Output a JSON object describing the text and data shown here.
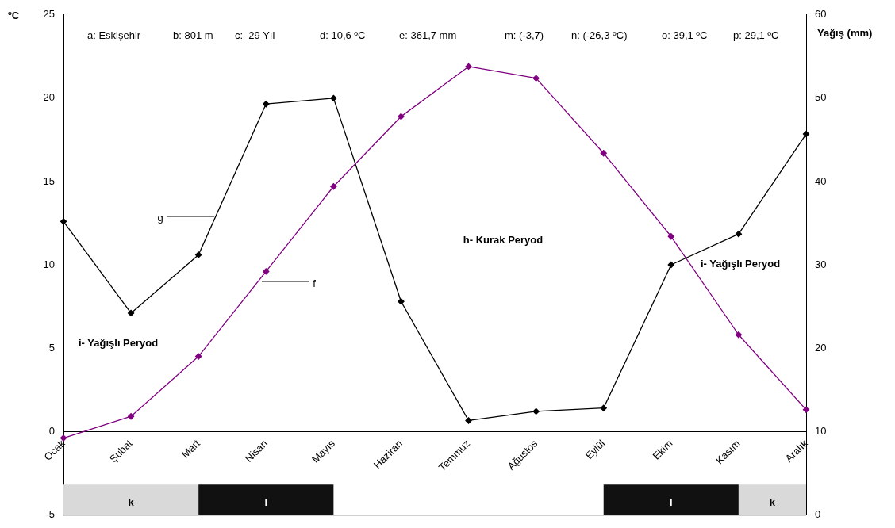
{
  "chart_data": {
    "type": "line",
    "categories": [
      "Ocak",
      "Şubat",
      "Mart",
      "Nisan",
      "Mayıs",
      "Haziran",
      "Temmuz",
      "Ağustos",
      "Eylül",
      "Ekim",
      "Kasım",
      "Aralık"
    ],
    "series": [
      {
        "color": "#800080",
        "values": [
          -0.4,
          0.9,
          4.5,
          9.6,
          14.7,
          18.9,
          21.9,
          21.2,
          16.7,
          11.7,
          5.8,
          1.3
        ]
      },
      {
        "color": "#000000",
        "axis": "y2",
        "values": [
          35.2,
          24.2,
          31.2,
          49.3,
          50.0,
          25.6,
          11.3,
          12.4,
          12.8,
          30.0,
          33.7,
          45.7
        ]
      }
    ],
    "ylabel": "ºC",
    "y2label": "Yağış (mm)",
    "ylim": [
      -5,
      25
    ],
    "yticks": [
      -5,
      0,
      5,
      10,
      15,
      20,
      25
    ],
    "y2lim": [
      0,
      60
    ],
    "y2ticks": [
      0,
      10,
      20,
      30,
      40,
      50,
      60
    ],
    "marker": "diamond",
    "grid": false,
    "legend": false,
    "bands": [
      {
        "axis": "x",
        "from": "Ocak",
        "to": "Mart",
        "label": "k",
        "color": "#d9d9d9"
      },
      {
        "axis": "x",
        "from": "Mart",
        "to": "Mayıs",
        "label": "l",
        "color": "#111111"
      },
      {
        "axis": "x",
        "from": "Eylül",
        "to": "Kasım",
        "label": "l",
        "color": "#111111"
      },
      {
        "axis": "x",
        "from": "Kasım",
        "to": "Aralık",
        "label": "k",
        "color": "#d9d9d9"
      }
    ],
    "annotations": [
      "a: Eskişehir",
      "b: 801 m",
      "c:  29 Yıl",
      "d: 10,6 ºC",
      "e: 361,7 mm",
      "m: (-3,7)",
      "n: (-26,3 ºC)",
      "o: 39,1 ºC",
      "p: 29,1 ºC",
      "g",
      "f",
      "h- Kurak Peryod",
      "i- Yağışlı Peryod",
      "i- Yağışlı Peryod"
    ]
  }
}
